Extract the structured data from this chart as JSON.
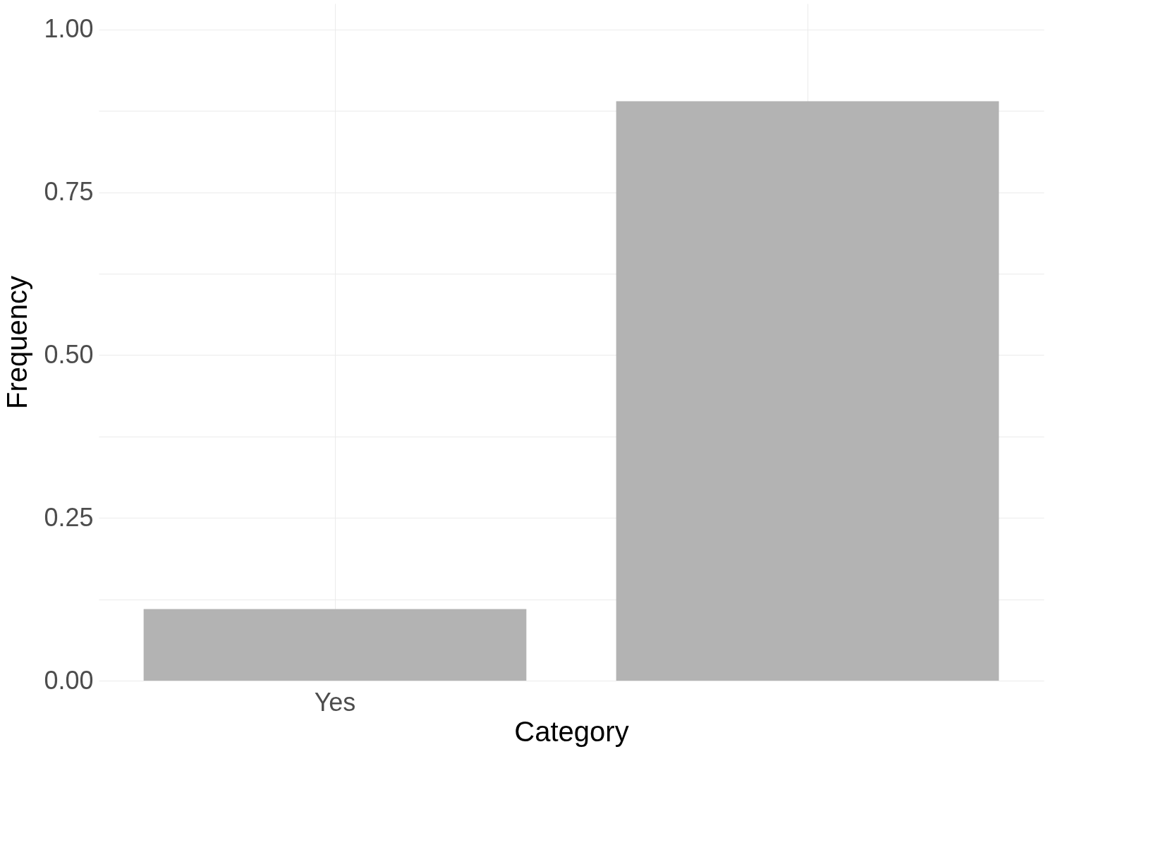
{
  "chart_data": {
    "type": "bar",
    "xlabel": "Category",
    "ylabel": "Frequency",
    "categories": [
      "Yes",
      null
    ],
    "values": [
      0.11,
      0.89
    ],
    "color": "#b3b3b3",
    "ylim": [
      0,
      1.04
    ],
    "yticks": [
      {
        "value": 0,
        "label": "0.00"
      },
      {
        "value": 0.125,
        "label": null
      },
      0.25,
      {
        "value": 0.375,
        "label": null
      },
      {
        "value": 0.5,
        "label": "0.50"
      },
      {
        "value": 0.625,
        "label": null
      },
      0.75,
      {
        "value": 0.875,
        "label": null
      },
      {
        "value": 1,
        "label": "1.00"
      }
    ],
    "grid": true
  }
}
